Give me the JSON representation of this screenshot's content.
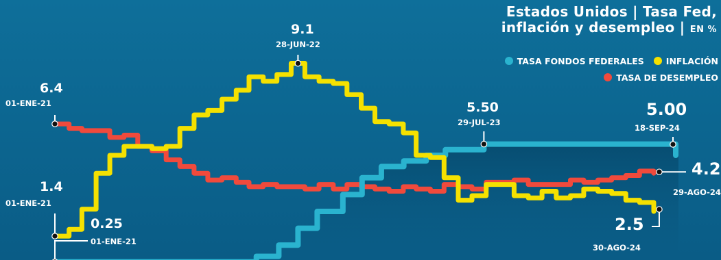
{
  "title": {
    "line1": "Estados Unidos | Tasa Fed,",
    "line2": "inflación y desempleo |",
    "unit": "EN %"
  },
  "colors": {
    "background": "#0a5c86",
    "fed": "#2ab3cf",
    "inflation": "#f5e100",
    "unemployment": "#f04a3c",
    "text": "#ffffff"
  },
  "legend": [
    {
      "label": "TASA FONDOS FEDERALES",
      "color": "#2ab3cf"
    },
    {
      "label": "INFLACIÓN",
      "color": "#f5e100"
    },
    {
      "label": "TASA DE DESEMPLEO",
      "color": "#f04a3c"
    }
  ],
  "annotations": {
    "unemp_start_value": "6.4",
    "unemp_start_date": "01-ENE-21",
    "infl_start_value": "1.4",
    "infl_start_date": "01-ENE-21",
    "fed_start_value": "0.25",
    "fed_start_date": "01-ENE-21",
    "infl_peak_value": "9.1",
    "infl_peak_date": "28-JUN-22",
    "fed_peak_value": "5.50",
    "fed_peak_date": "29-JUL-23",
    "fed_end_value": "5.00",
    "fed_end_date": "18-SEP-24",
    "unemp_end_value": "4.2",
    "unemp_end_date": "29-AGO-24",
    "infl_end_value": "2.5",
    "infl_end_date": "30-AGO-24"
  },
  "chart_data": {
    "type": "line",
    "ylim": [
      0,
      10
    ],
    "xlabel": "",
    "ylabel": "",
    "series": [
      {
        "key": "fed",
        "name": "TASA FONDOS FEDERALES",
        "color": "#2ab3cf",
        "x": [
          "2021-01-01",
          "2022-03-17",
          "2022-05-05",
          "2022-06-16",
          "2022-07-28",
          "2022-09-22",
          "2022-11-03",
          "2022-12-15",
          "2023-02-02",
          "2023-03-23",
          "2023-05-04",
          "2023-07-27",
          "2024-09-18"
        ],
        "y": [
          0.25,
          0.5,
          1.0,
          1.75,
          2.5,
          3.25,
          4.0,
          4.5,
          4.75,
          5.0,
          5.25,
          5.5,
          5.0
        ]
      },
      {
        "key": "infl",
        "name": "INFLACIÓN",
        "color": "#f5e100",
        "x": [
          "2021-01-01",
          "2021-02-01",
          "2021-03-01",
          "2021-04-01",
          "2021-05-01",
          "2021-06-01",
          "2021-07-01",
          "2021-08-01",
          "2021-09-01",
          "2021-10-01",
          "2021-11-01",
          "2021-12-01",
          "2022-01-01",
          "2022-02-01",
          "2022-03-01",
          "2022-04-01",
          "2022-05-01",
          "2022-06-01",
          "2022-07-01",
          "2022-08-01",
          "2022-09-01",
          "2022-10-01",
          "2022-11-01",
          "2022-12-01",
          "2023-01-01",
          "2023-02-01",
          "2023-03-01",
          "2023-04-01",
          "2023-05-01",
          "2023-06-01",
          "2023-07-01",
          "2023-08-01",
          "2023-09-01",
          "2023-10-01",
          "2023-11-01",
          "2023-12-01",
          "2024-01-01",
          "2024-02-01",
          "2024-03-01",
          "2024-04-01",
          "2024-05-01",
          "2024-06-01",
          "2024-07-01",
          "2024-08-01"
        ],
        "y": [
          1.4,
          1.7,
          2.6,
          4.2,
          5.0,
          5.4,
          5.4,
          5.3,
          5.4,
          6.2,
          6.8,
          7.0,
          7.5,
          7.9,
          8.5,
          8.3,
          8.6,
          9.1,
          8.5,
          8.3,
          8.2,
          7.7,
          7.1,
          6.5,
          6.4,
          6.0,
          5.0,
          4.9,
          4.0,
          3.0,
          3.2,
          3.7,
          3.7,
          3.2,
          3.1,
          3.4,
          3.1,
          3.2,
          3.5,
          3.4,
          3.3,
          3.0,
          2.9,
          2.5
        ]
      },
      {
        "key": "unemp",
        "name": "TASA DE DESEMPLEO",
        "color": "#f04a3c",
        "x": [
          "2021-01-01",
          "2021-02-01",
          "2021-03-01",
          "2021-04-01",
          "2021-05-01",
          "2021-06-01",
          "2021-07-01",
          "2021-08-01",
          "2021-09-01",
          "2021-10-01",
          "2021-11-01",
          "2021-12-01",
          "2022-01-01",
          "2022-02-01",
          "2022-03-01",
          "2022-04-01",
          "2022-05-01",
          "2022-06-01",
          "2022-07-01",
          "2022-08-01",
          "2022-09-01",
          "2022-10-01",
          "2022-11-01",
          "2022-12-01",
          "2023-01-01",
          "2023-02-01",
          "2023-03-01",
          "2023-04-01",
          "2023-05-01",
          "2023-06-01",
          "2023-07-01",
          "2023-08-01",
          "2023-09-01",
          "2023-10-01",
          "2023-11-01",
          "2023-12-01",
          "2024-01-01",
          "2024-02-01",
          "2024-03-01",
          "2024-04-01",
          "2024-05-01",
          "2024-06-01",
          "2024-07-01",
          "2024-08-01"
        ],
        "y": [
          6.4,
          6.2,
          6.1,
          6.1,
          5.8,
          5.9,
          5.4,
          5.2,
          4.8,
          4.5,
          4.2,
          3.9,
          4.0,
          3.8,
          3.6,
          3.7,
          3.6,
          3.6,
          3.5,
          3.7,
          3.5,
          3.7,
          3.6,
          3.5,
          3.4,
          3.6,
          3.5,
          3.4,
          3.7,
          3.6,
          3.5,
          3.8,
          3.8,
          3.9,
          3.7,
          3.7,
          3.7,
          3.9,
          3.8,
          3.9,
          4.0,
          4.1,
          4.3,
          4.2
        ]
      }
    ]
  }
}
